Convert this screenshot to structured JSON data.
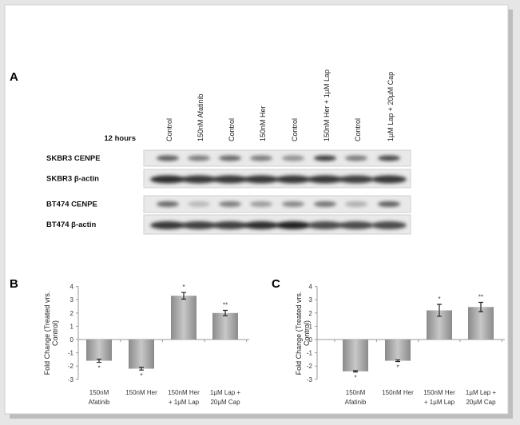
{
  "panel_a": {
    "letter": "A",
    "time_label": "12 hours",
    "lanes": [
      "Control",
      "150nM Afatinib",
      "Control",
      "150nM Her",
      "Control",
      "150nM Her + 1µM Lap",
      "Control",
      "1µM Lap + 20µM Cap"
    ],
    "rows": [
      {
        "label": "SKBR3 CENPE",
        "band_intensity": [
          0.7,
          0.55,
          0.65,
          0.55,
          0.45,
          0.85,
          0.55,
          0.8
        ]
      },
      {
        "label": "SKBR3 β-actin",
        "band_intensity": [
          0.95,
          0.9,
          0.9,
          0.9,
          0.9,
          0.9,
          0.85,
          0.9
        ]
      },
      {
        "label": "BT474 CENPE",
        "band_intensity": [
          0.65,
          0.25,
          0.55,
          0.4,
          0.5,
          0.6,
          0.3,
          0.7
        ]
      },
      {
        "label": "BT474 β-actin",
        "band_intensity": [
          0.9,
          0.85,
          0.85,
          0.95,
          1.0,
          0.8,
          0.8,
          0.8
        ]
      }
    ]
  },
  "chart_data": [
    {
      "panel": "B",
      "type": "bar",
      "ylabel": "Fold Change (Treated vrs. Control)",
      "ylim": [
        -3,
        4
      ],
      "yticks": [
        "4",
        "3",
        "2",
        "1",
        "0",
        "-1",
        "-2",
        "-3"
      ],
      "categories": [
        "150nM Afatinib",
        "150nM Her",
        "150nM Her + 1µM Lap",
        "1µM Lap + 20µM Cap"
      ],
      "values": [
        -1.6,
        -2.2,
        3.3,
        2.0
      ],
      "errors": [
        0.12,
        0.1,
        0.25,
        0.2
      ],
      "significance": [
        "*",
        "*",
        "*",
        "**"
      ]
    },
    {
      "panel": "C",
      "type": "bar",
      "ylabel": "Fold Change (Treated vrs. Control)",
      "ylim": [
        -3,
        4
      ],
      "yticks": [
        "4",
        "3",
        "2",
        "1",
        "0",
        "-1",
        "-2",
        "-3"
      ],
      "categories": [
        "150nM Afatinib",
        "150nM Her",
        "150nM Her + 1µM Lap",
        "1µM Lap + 20µM Cap"
      ],
      "values": [
        -2.4,
        -1.6,
        2.2,
        2.45
      ],
      "errors": [
        0.05,
        0.06,
        0.45,
        0.35
      ],
      "significance": [
        "*",
        "*",
        "*",
        "**"
      ]
    }
  ],
  "category_lines": [
    [
      "150nM",
      "Afatinib"
    ],
    [
      "150nM Her",
      ""
    ],
    [
      "150nM Her",
      "+ 1µM Lap"
    ],
    [
      "1µM Lap +",
      "20µM Cap"
    ]
  ]
}
